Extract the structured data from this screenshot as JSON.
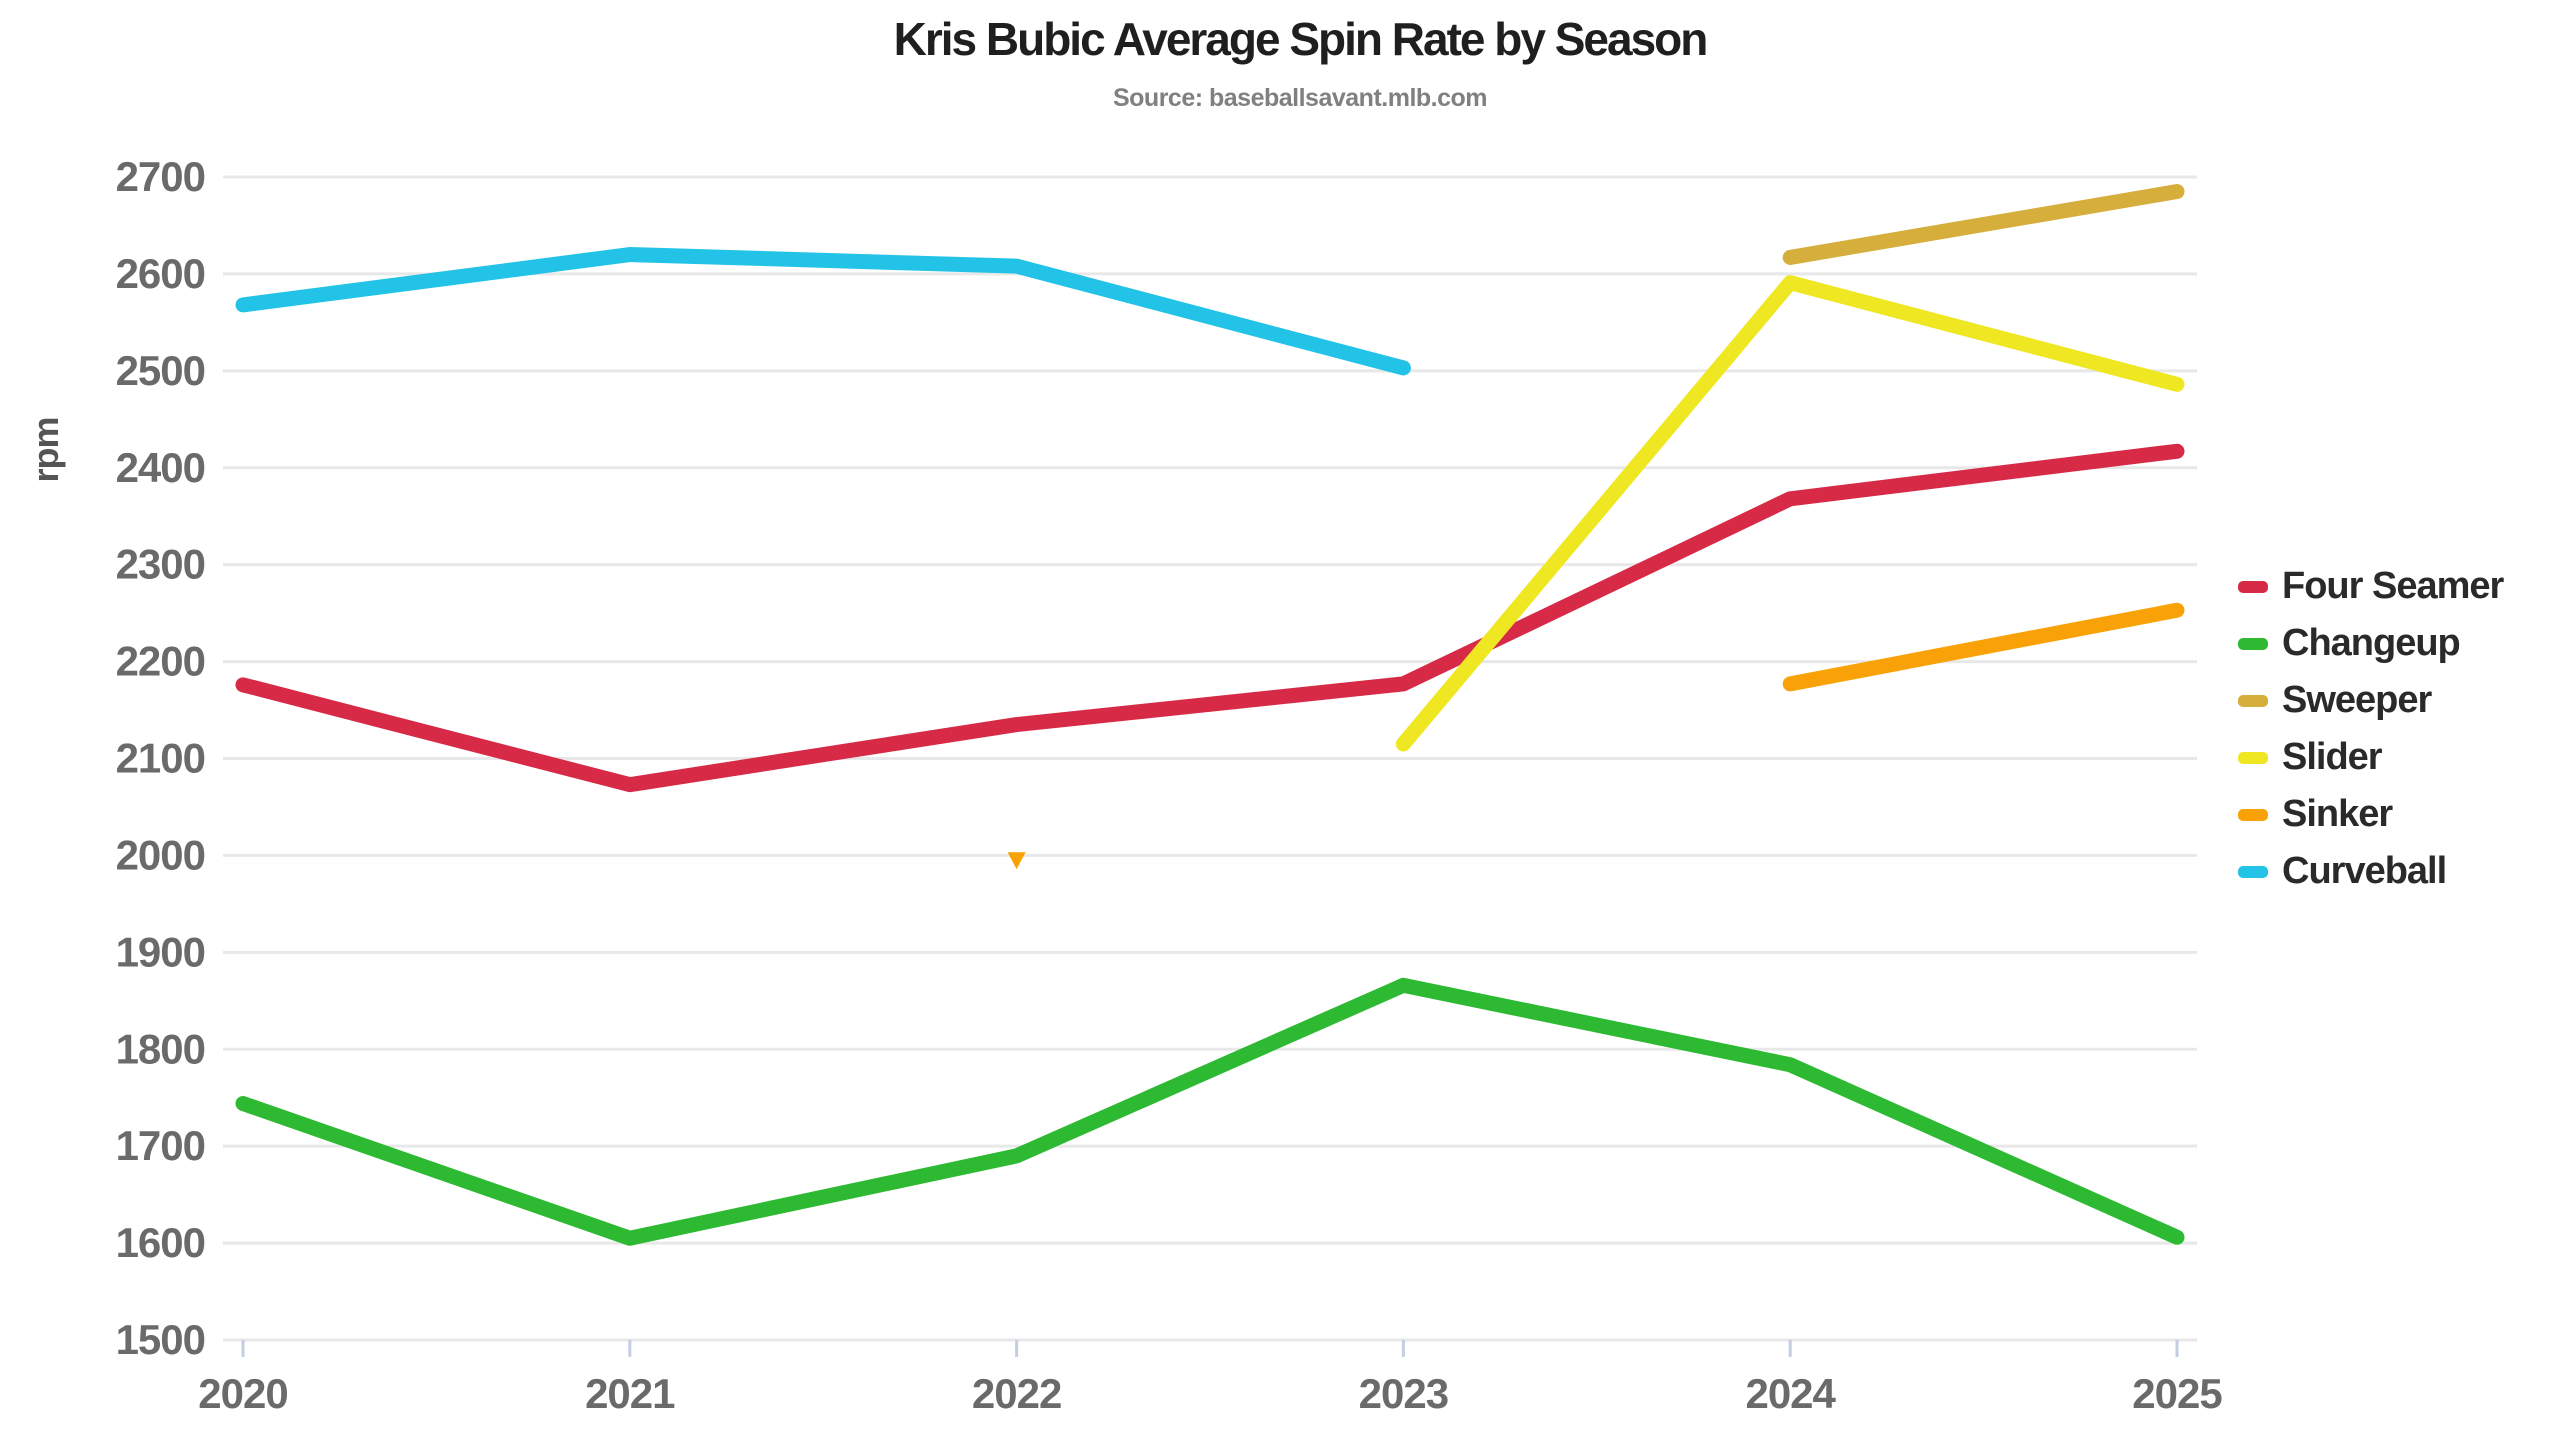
{
  "chart_data": {
    "type": "line",
    "title": "Kris Bubic Average Spin Rate by Season",
    "subtitle": "Source: baseballsavant.mlb.com",
    "ylabel": "rpm",
    "xlabel": "",
    "categories": [
      2020,
      2021,
      2022,
      2023,
      2024,
      2025
    ],
    "x_tick_labels": [
      "2020",
      "2021",
      "2022",
      "2023",
      "2024",
      "2025"
    ],
    "y_tick_labels": [
      "2700",
      "2600",
      "2500",
      "2400",
      "2300",
      "2200",
      "2100",
      "2000",
      "1900",
      "1800",
      "1700",
      "1600",
      "1500"
    ],
    "ylim": [
      1500,
      2700
    ],
    "y_tick_step": 100,
    "grid": "horizontal",
    "legend_position": "right-middle",
    "lone_point_marker": "triangle-down",
    "series": [
      {
        "name": "Four Seamer",
        "color": "#d62a46",
        "values": [
          2176,
          2073,
          2135,
          2177,
          2368,
          2417
        ]
      },
      {
        "name": "Changeup",
        "color": "#2dba32",
        "values": [
          1744,
          1605,
          1690,
          1866,
          1784,
          1606
        ]
      },
      {
        "name": "Sweeper",
        "color": "#d5ae3c",
        "values": [
          null,
          null,
          null,
          null,
          2617,
          2685
        ]
      },
      {
        "name": "Slider",
        "color": "#f0e723",
        "values": [
          null,
          null,
          null,
          2115,
          2591,
          2486
        ]
      },
      {
        "name": "Sinker",
        "color": "#f9a207",
        "values": [
          null,
          null,
          1995,
          null,
          2177,
          2253
        ]
      },
      {
        "name": "Curveball",
        "color": "#22c3e6",
        "values": [
          2568,
          2620,
          2608,
          2503,
          null,
          null
        ]
      }
    ],
    "colors": {
      "background": "#ffffff",
      "grid": "#e8e8e8",
      "axis_line": "#e8e8e8",
      "tick_mark": "#c3cfe0",
      "tick_label": "#6a6a6a",
      "title": "#1f1f1f",
      "subtitle": "#808080",
      "legend_text": "#2a2a2a"
    }
  }
}
